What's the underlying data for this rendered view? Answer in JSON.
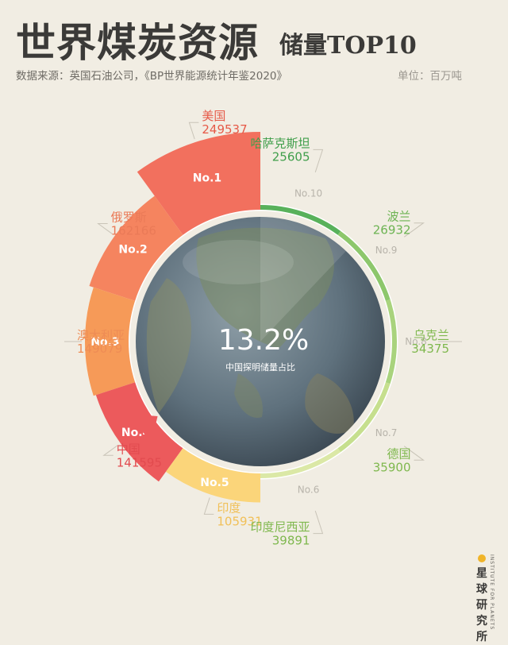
{
  "header": {
    "title_main": "世界煤炭资源",
    "title_sub": "储量TOP10",
    "source": "数据来源：英国石油公司，《BP世界能源统计年鉴2020》",
    "unit": "单位：百万吨"
  },
  "center": {
    "value": "13.2%",
    "label": "中国探明储量占比"
  },
  "logo": {
    "name_en": "INSTITUTE FOR PLANETS",
    "name_cn": "星球研究所"
  },
  "chart_data": {
    "type": "pie",
    "title": "世界煤炭资源储量TOP10",
    "unit": "百万吨",
    "ranks": [
      "No.1",
      "No.2",
      "No.3",
      "No.4",
      "No.5",
      "No.6",
      "No.7",
      "No.8",
      "No.9",
      "No.10"
    ],
    "categories": [
      "美国",
      "俄罗斯",
      "澳大利亚",
      "中国",
      "印度",
      "印度尼西亚",
      "德国",
      "乌克兰",
      "波兰",
      "哈萨克斯坦"
    ],
    "values": [
      249537,
      162166,
      149079,
      141595,
      105931,
      39891,
      35900,
      34375,
      26932,
      25605
    ],
    "colors": [
      "#f2705e",
      "#f5845f",
      "#f69a58",
      "#ec5a5c",
      "#fbd57a",
      "#dbe8a6",
      "#c6df8e",
      "#a9d37d",
      "#8dc76c",
      "#58b15b"
    ],
    "label_colors": [
      "#e65a48",
      "#ea7a57",
      "#ee8c55",
      "#e24b4f",
      "#f1c058",
      "#7fb84e",
      "#7fb84e",
      "#7fb84e",
      "#6cb352",
      "#3f9e4a"
    ],
    "highlight": "中国",
    "highlight_share": 13.2
  }
}
